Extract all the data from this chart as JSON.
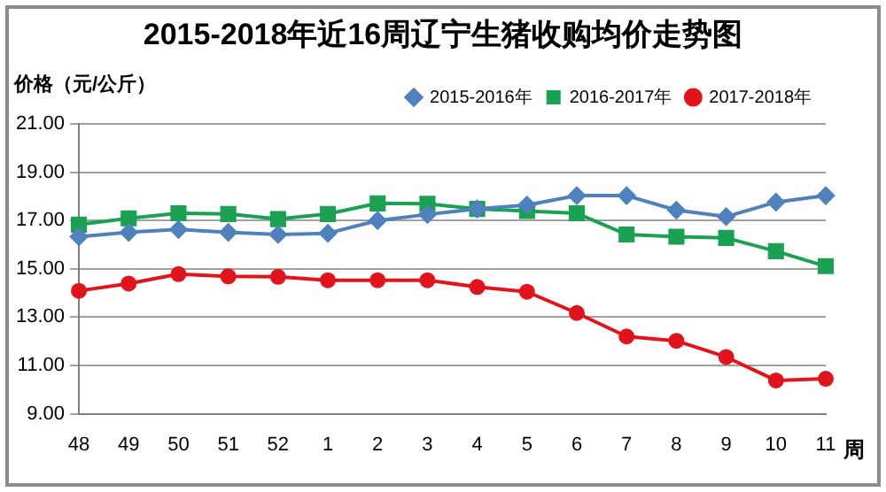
{
  "chart_data": {
    "type": "line",
    "title": "2015-2018年近16周辽宁生猪收购均价走势图",
    "ylabel": "价格（元/公斤）",
    "xlabel": "周",
    "categories": [
      "48",
      "49",
      "50",
      "51",
      "52",
      "1",
      "2",
      "3",
      "4",
      "5",
      "6",
      "7",
      "8",
      "9",
      "10",
      "11"
    ],
    "series": [
      {
        "name": "2015-2016年",
        "color": "#4f81bd",
        "marker": "diamond",
        "values": [
          16.33,
          16.51,
          16.63,
          16.51,
          16.42,
          16.47,
          17.0,
          17.25,
          17.48,
          17.64,
          18.03,
          18.03,
          17.43,
          17.16,
          17.76,
          18.03
        ]
      },
      {
        "name": "2016-2017年",
        "color": "#1aa152",
        "marker": "square",
        "values": [
          16.83,
          17.09,
          17.3,
          17.27,
          17.06,
          17.27,
          17.71,
          17.69,
          17.48,
          17.39,
          17.3,
          16.42,
          16.33,
          16.28,
          15.73,
          15.11
        ]
      },
      {
        "name": "2017-2018年",
        "color": "#e2141b",
        "marker": "circle",
        "values": [
          14.09,
          14.39,
          14.78,
          14.69,
          14.67,
          14.53,
          14.53,
          14.53,
          14.25,
          14.05,
          13.17,
          12.2,
          12.02,
          11.35,
          10.38,
          10.45
        ]
      }
    ],
    "ylim": [
      9,
      21
    ],
    "yticks": [
      {
        "value": 9,
        "label": "9.00"
      },
      {
        "value": 11,
        "label": "11.00"
      },
      {
        "value": 13,
        "label": "13.00"
      },
      {
        "value": 15,
        "label": "15.00"
      },
      {
        "value": 17,
        "label": "17.00"
      },
      {
        "value": 19,
        "label": "19.00"
      },
      {
        "value": 21,
        "label": "21.00"
      }
    ],
    "grid": "y",
    "legend": "top right"
  }
}
